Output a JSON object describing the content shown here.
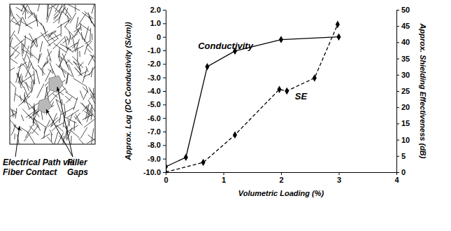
{
  "chart_data": {
    "type": "line",
    "annotations": [
      "Electrical Path via Fiber Contact",
      "Filler Gaps"
    ],
    "x_label": "Volumetric Loading (%)",
    "y_label": "Approx. Log  (DC Conductivity (S/cm))",
    "y2_label": "Approx. Shielding Effectiveness (dB)",
    "xlim": [
      0,
      4
    ],
    "xticks": [
      0,
      1,
      2,
      3,
      4
    ],
    "ylim": [
      -10,
      2
    ],
    "yticks": [
      {
        "value": -10,
        "label": "-10.0"
      },
      {
        "value": -9,
        "label": "-9.0"
      },
      {
        "value": -8,
        "label": "-8.0"
      },
      {
        "value": -7,
        "label": "-7.0"
      },
      {
        "value": -6,
        "label": "-6.0"
      },
      {
        "value": -5,
        "label": "-5.0"
      },
      {
        "value": -4,
        "label": "-4.0"
      },
      {
        "value": -3,
        "label": "-3.0"
      },
      {
        "value": -2,
        "label": "-2.0"
      },
      {
        "value": -1,
        "label": "-1.0"
      },
      0,
      {
        "value": 1,
        "label": "1.0"
      },
      {
        "value": 2,
        "label": "2.0"
      }
    ],
    "y2lim": [
      0,
      50
    ],
    "y2ticks": [
      0,
      5,
      10,
      15,
      20,
      25,
      30,
      35,
      40,
      45,
      50
    ],
    "grid": false,
    "series": [
      {
        "name": "Conductivity",
        "color": "#000000",
        "marker": "diamond",
        "line_style": "solid",
        "x": [
          0,
          0.35,
          0.72,
          1.2,
          2.0,
          3.0
        ],
        "values": [
          -9.6,
          -8.9,
          -2.2,
          -1.05,
          -0.2,
          0.0
        ]
      },
      {
        "name": "SE",
        "axis": "y2",
        "color": "#000000",
        "marker": "diamond",
        "line_style": "dashed",
        "x": [
          0,
          0.65,
          1.2,
          1.97,
          2.1,
          2.58,
          2.98
        ],
        "values": [
          0,
          3,
          11.5,
          25.5,
          25,
          29,
          45.5
        ]
      }
    ]
  }
}
